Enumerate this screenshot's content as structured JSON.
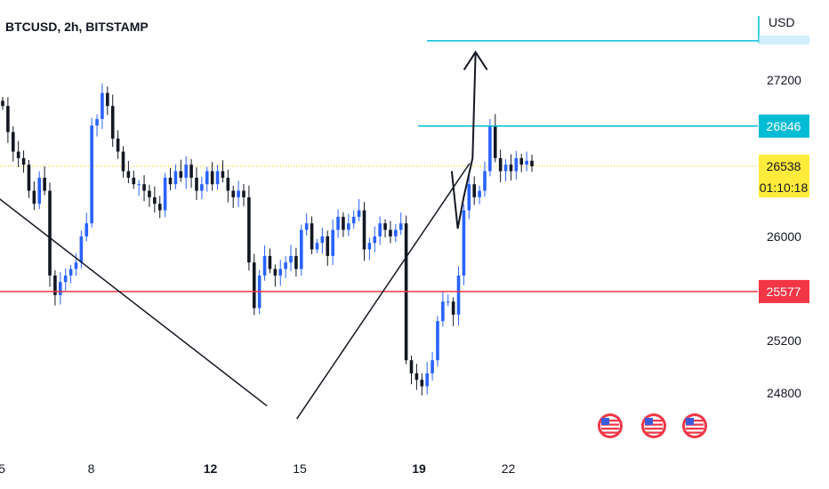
{
  "chart_data": {
    "type": "candlestick",
    "title": "BTCUSD, 2h, BITSTAMP",
    "currency": "USD",
    "y_ticks": [
      27200,
      26000,
      25200,
      24800
    ],
    "x_ticks": [
      "5",
      "8",
      "12",
      "15",
      "19",
      "22"
    ],
    "x_ticks_bold": [
      "12",
      "19"
    ],
    "ylim": [
      24540,
      27690
    ],
    "current_price": {
      "value": "26538",
      "countdown": "01:10:18",
      "color": "#ffeb3b"
    },
    "levels": [
      {
        "value": 27500,
        "color": "#00bcd4",
        "label": ""
      },
      {
        "value": 26846,
        "color": "#00bcd4",
        "label": "26846",
        "label_color": "#00bcd4"
      },
      {
        "value": 25577,
        "color": "#f23645",
        "label": "25577",
        "label_color": "#f23645"
      }
    ],
    "series": [
      {
        "values": [
          27000,
          26800,
          26650,
          26600,
          26550,
          26350,
          26250,
          26450,
          26350,
          25700,
          25550,
          25650,
          25700,
          25750,
          25800,
          26000,
          26100,
          26850,
          26900,
          27100,
          27000,
          26750,
          26650,
          26500,
          26450,
          26400,
          26400,
          26350,
          26300,
          26250,
          26200,
          26450,
          26400,
          26500,
          26450,
          26550,
          26450,
          26350,
          26400,
          26500,
          26400,
          26500,
          26450,
          26350,
          26300,
          26350,
          26300,
          25800,
          25450,
          25700,
          25850,
          25750,
          25700,
          25750,
          25800,
          25850,
          25750,
          26050,
          26100,
          25900,
          25950,
          26000,
          25850,
          26050,
          26150,
          26050,
          26100,
          26150,
          26200,
          25900,
          25950,
          26000,
          26100,
          26050,
          26000,
          26050,
          26100,
          25050,
          24950,
          24900,
          24850,
          24950,
          25050,
          25350,
          25500,
          25500,
          25400,
          25700,
          26200,
          26400,
          26300,
          26350,
          26500,
          26850,
          26600,
          26500,
          26550,
          26500,
          26600,
          26550,
          26580,
          26538
        ]
      }
    ],
    "annotations": {
      "trendlines": [
        {
          "from": [
            0.9,
            27000
          ],
          "to": [
            13.9,
            24700
          ]
        },
        {
          "from": [
            14.9,
            24600
          ],
          "to": [
            20.7,
            26560
          ]
        }
      ],
      "projection_path": [
        [
          20.1,
          26500
        ],
        [
          20.3,
          26060
        ],
        [
          20.5,
          26300
        ],
        [
          20.8,
          26600
        ],
        [
          20.9,
          27400
        ]
      ],
      "arrow_up": true
    },
    "events": [
      {
        "icon": "us-flag-icon"
      },
      {
        "icon": "us-flag-icon"
      },
      {
        "icon": "us-flag-icon"
      }
    ],
    "colors": {
      "up": "#2962ff",
      "down": "#131722"
    }
  }
}
